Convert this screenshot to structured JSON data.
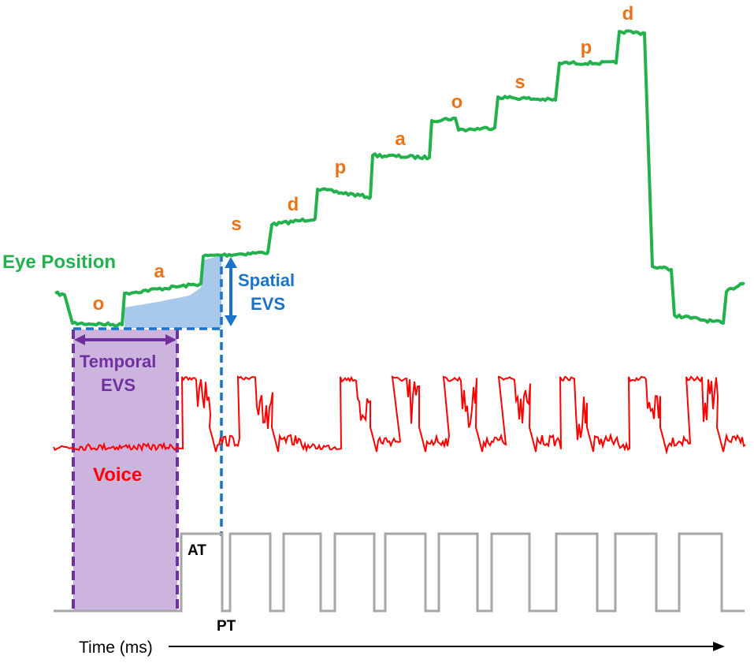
{
  "labels": {
    "eye_position": "Eye Position",
    "spatial_evs_line1": "Spatial",
    "spatial_evs_line2": "EVS",
    "temporal_evs_line1": "Temporal",
    "temporal_evs_line2": "EVS",
    "voice": "Voice",
    "at": "AT",
    "pt": "PT",
    "time_axis": "Time (ms)"
  },
  "letters": [
    "o",
    "a",
    "s",
    "d",
    "p",
    "a",
    "o",
    "s",
    "p",
    "d"
  ],
  "colors": {
    "eye": "#22b14c",
    "voice": "#ff0000",
    "letters": "#e8731a",
    "spatial": "#1a73c7",
    "spatial_fill": "#a9c9ea",
    "temporal": "#7030a0",
    "temporal_fill": "#cdb4de",
    "trigger": "#a6a6a6",
    "axis": "#000000"
  }
}
